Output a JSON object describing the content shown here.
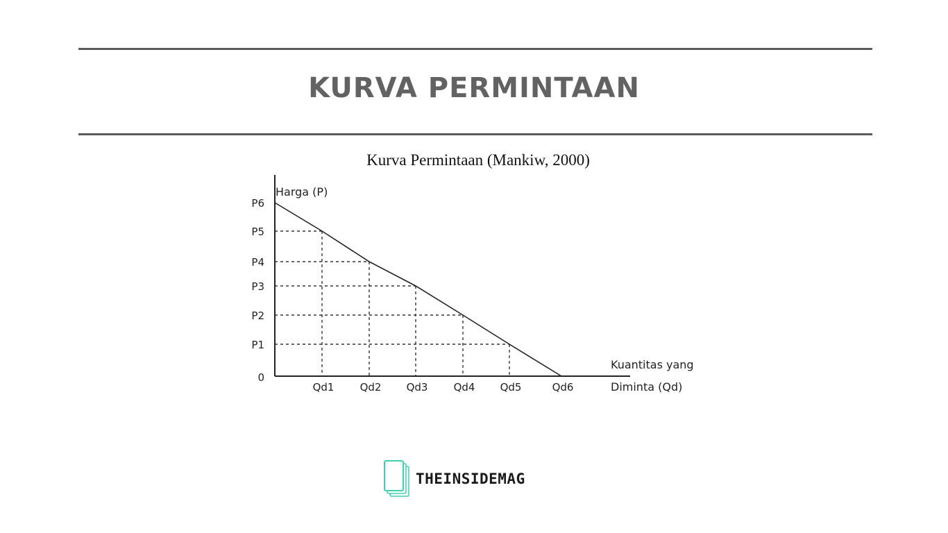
{
  "banner": {
    "title": "KURVA PERMINTAAN"
  },
  "chart_data": {
    "type": "line",
    "title": "Kurva Permintaan (Mankiw, 2000)",
    "ylabel": "Harga (P)",
    "xlabel_line1": "Kuantitas yang",
    "xlabel_line2": "Diminta (Qd)",
    "origin_label": "0",
    "x_ticks": [
      "Qd1",
      "Qd2",
      "Qd3",
      "Qd4",
      "Qd5",
      "Qd6"
    ],
    "y_ticks": [
      "P1",
      "P2",
      "P3",
      "P4",
      "P5",
      "P6"
    ],
    "series": [
      {
        "x": [
          0,
          1,
          2,
          3,
          4,
          5,
          6
        ],
        "y": [
          6,
          5,
          4,
          3,
          2,
          1,
          0
        ]
      }
    ],
    "guides": "dashed",
    "grid": false
  },
  "footer": {
    "brand": "THEINSIDEMAG",
    "logo_icon": "stacked-pages-icon",
    "logo_color": "#3fd0b0"
  }
}
